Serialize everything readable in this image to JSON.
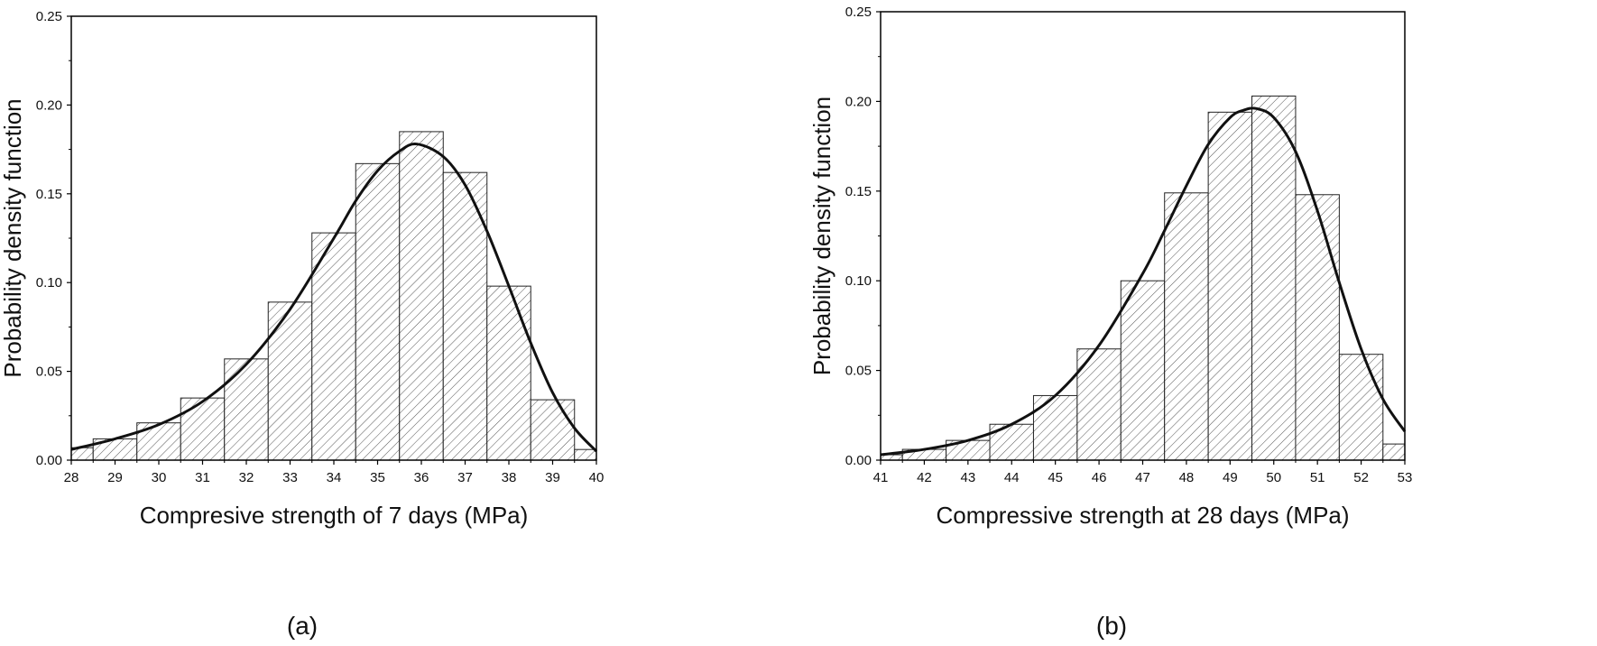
{
  "chart_data": [
    {
      "type": "bar",
      "caption": "(a)",
      "xlabel": "Compresive strength of 7 days (MPa)",
      "ylabel": "Probability density function",
      "xlim": [
        28,
        40
      ],
      "ylim": [
        0,
        0.25
      ],
      "xticks": [
        "28",
        "29",
        "30",
        "31",
        "32",
        "33",
        "34",
        "35",
        "36",
        "37",
        "38",
        "39",
        "40"
      ],
      "yticks": [
        "0.00",
        "0.05",
        "0.10",
        "0.15",
        "0.20",
        "0.25"
      ],
      "bin_edges": [
        28,
        28.5,
        29.5,
        30.5,
        31.5,
        32.5,
        33.5,
        34.5,
        35.5,
        36.5,
        37.5,
        38.5,
        39.5,
        40
      ],
      "values": [
        0.007,
        0.012,
        0.021,
        0.035,
        0.057,
        0.089,
        0.128,
        0.167,
        0.185,
        0.162,
        0.098,
        0.034,
        0.006
      ],
      "curve": {
        "x": [
          28,
          29,
          30,
          31,
          32,
          33,
          34,
          34.5,
          35,
          35.5,
          35.9,
          36.5,
          37,
          37.5,
          38,
          38.5,
          39,
          39.5,
          40
        ],
        "y": [
          0.006,
          0.012,
          0.02,
          0.033,
          0.054,
          0.085,
          0.125,
          0.146,
          0.163,
          0.174,
          0.178,
          0.171,
          0.155,
          0.129,
          0.098,
          0.066,
          0.038,
          0.018,
          0.005
        ]
      },
      "grid": false
    },
    {
      "type": "bar",
      "caption": "(b)",
      "xlabel": "Compressive strength at 28 days (MPa)",
      "ylabel": "Probability density function",
      "xlim": [
        41,
        53
      ],
      "ylim": [
        0,
        0.25
      ],
      "xticks": [
        "41",
        "42",
        "43",
        "44",
        "45",
        "46",
        "47",
        "48",
        "49",
        "50",
        "51",
        "52",
        "53"
      ],
      "yticks": [
        "0.00",
        "0.05",
        "0.10",
        "0.15",
        "0.20",
        "0.25"
      ],
      "bin_edges": [
        41,
        41.5,
        42.5,
        43.5,
        44.5,
        45.5,
        46.5,
        47.5,
        48.5,
        49.5,
        50.5,
        51.5,
        52.5,
        53
      ],
      "values": [
        0.003,
        0.006,
        0.011,
        0.02,
        0.036,
        0.062,
        0.1,
        0.149,
        0.194,
        0.203,
        0.148,
        0.059,
        0.009
      ],
      "curve": {
        "x": [
          41,
          42,
          43,
          44,
          45,
          46,
          47,
          47.5,
          48,
          48.5,
          49,
          49.3,
          49.6,
          50,
          50.5,
          51,
          51.5,
          52,
          52.5,
          53
        ],
        "y": [
          0.003,
          0.006,
          0.011,
          0.02,
          0.036,
          0.064,
          0.104,
          0.128,
          0.153,
          0.176,
          0.191,
          0.195,
          0.196,
          0.191,
          0.172,
          0.139,
          0.099,
          0.062,
          0.034,
          0.016
        ]
      },
      "grid": false
    }
  ]
}
